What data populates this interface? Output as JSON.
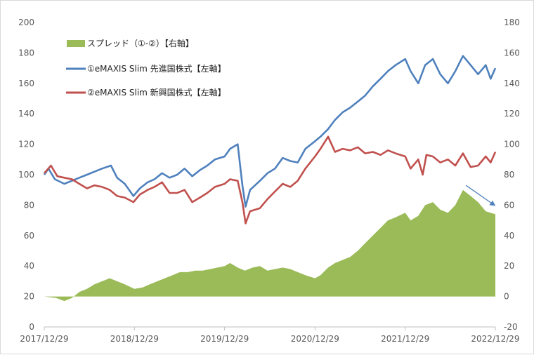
{
  "chart_data": {
    "type": "line",
    "title": "",
    "xlabel": "",
    "ylabel": "",
    "x_tick_labels": [
      "2017/12/29",
      "2018/12/29",
      "2019/12/29",
      "2020/12/29",
      "2021/12/29",
      "2022/12/29"
    ],
    "x_range": [
      "2017/12/29",
      "2022/12/29"
    ],
    "ylim_left": [
      0,
      200
    ],
    "yticks_left": [
      0,
      20,
      40,
      60,
      80,
      100,
      120,
      140,
      160,
      180,
      200
    ],
    "ylim_right": [
      -20,
      180
    ],
    "yticks_right": [
      -20,
      0,
      20,
      40,
      60,
      80,
      100,
      120,
      140,
      160,
      180
    ],
    "grid": false,
    "legend_position": "top-left",
    "series": [
      {
        "name": "スプレッド（①-②）【右軸】",
        "kind": "area",
        "axis": "right",
        "color": "#9BBB59",
        "points": [
          [
            "2017/12/29",
            0
          ],
          [
            "2018/02/15",
            -1
          ],
          [
            "2018/03/20",
            -3
          ],
          [
            "2018/04/20",
            -1
          ],
          [
            "2018/05/20",
            3
          ],
          [
            "2018/06/20",
            5
          ],
          [
            "2018/07/20",
            8
          ],
          [
            "2018/08/20",
            10
          ],
          [
            "2018/09/20",
            12
          ],
          [
            "2018/10/20",
            10
          ],
          [
            "2018/11/20",
            8
          ],
          [
            "2018/12/29",
            5
          ],
          [
            "2019/02/01",
            6
          ],
          [
            "2019/03/01",
            8
          ],
          [
            "2019/04/01",
            10
          ],
          [
            "2019/05/01",
            12
          ],
          [
            "2019/06/01",
            14
          ],
          [
            "2019/07/01",
            16
          ],
          [
            "2019/08/01",
            16
          ],
          [
            "2019/09/01",
            17
          ],
          [
            "2019/10/01",
            17
          ],
          [
            "2019/11/01",
            18
          ],
          [
            "2019/12/29",
            20
          ],
          [
            "2020/01/20",
            22
          ],
          [
            "2020/02/20",
            19
          ],
          [
            "2020/03/20",
            17
          ],
          [
            "2020/04/20",
            19
          ],
          [
            "2020/05/20",
            20
          ],
          [
            "2020/06/20",
            17
          ],
          [
            "2020/07/20",
            18
          ],
          [
            "2020/08/20",
            19
          ],
          [
            "2020/09/20",
            18
          ],
          [
            "2020/10/20",
            16
          ],
          [
            "2020/11/20",
            14
          ],
          [
            "2020/12/29",
            12
          ],
          [
            "2021/01/20",
            14
          ],
          [
            "2021/02/20",
            19
          ],
          [
            "2021/03/20",
            22
          ],
          [
            "2021/04/20",
            24
          ],
          [
            "2021/05/20",
            26
          ],
          [
            "2021/06/20",
            30
          ],
          [
            "2021/07/20",
            35
          ],
          [
            "2021/08/20",
            40
          ],
          [
            "2021/09/20",
            45
          ],
          [
            "2021/10/20",
            50
          ],
          [
            "2021/11/20",
            52
          ],
          [
            "2021/12/29",
            55
          ],
          [
            "2022/01/20",
            50
          ],
          [
            "2022/02/20",
            53
          ],
          [
            "2022/03/20",
            60
          ],
          [
            "2022/04/20",
            62
          ],
          [
            "2022/05/20",
            57
          ],
          [
            "2022/06/20",
            55
          ],
          [
            "2022/07/20",
            60
          ],
          [
            "2022/08/20",
            70
          ],
          [
            "2022/09/20",
            66
          ],
          [
            "2022/10/20",
            62
          ],
          [
            "2022/11/20",
            56
          ],
          [
            "2022/12/29",
            54
          ]
        ]
      },
      {
        "name": "①eMAXIS Slim 先進国株式【左軸】",
        "kind": "line",
        "axis": "left",
        "color": "#4F81BD",
        "points": [
          [
            "2017/12/29",
            100
          ],
          [
            "2018/01/15",
            104
          ],
          [
            "2018/02/10",
            97
          ],
          [
            "2018/03/20",
            94
          ],
          [
            "2018/04/20",
            96
          ],
          [
            "2018/05/20",
            98
          ],
          [
            "2018/06/20",
            100
          ],
          [
            "2018/07/20",
            102
          ],
          [
            "2018/08/20",
            104
          ],
          [
            "2018/09/25",
            106
          ],
          [
            "2018/10/20",
            98
          ],
          [
            "2018/11/20",
            94
          ],
          [
            "2018/12/25",
            86
          ],
          [
            "2019/01/20",
            91
          ],
          [
            "2019/02/20",
            95
          ],
          [
            "2019/03/20",
            97
          ],
          [
            "2019/04/20",
            101
          ],
          [
            "2019/05/20",
            98
          ],
          [
            "2019/06/20",
            100
          ],
          [
            "2019/07/20",
            104
          ],
          [
            "2019/08/20",
            99
          ],
          [
            "2019/09/20",
            103
          ],
          [
            "2019/10/20",
            106
          ],
          [
            "2019/11/20",
            110
          ],
          [
            "2019/12/29",
            112
          ],
          [
            "2020/01/20",
            117
          ],
          [
            "2020/02/20",
            120
          ],
          [
            "2020/03/10",
            93
          ],
          [
            "2020/03/23",
            79
          ],
          [
            "2020/04/10",
            90
          ],
          [
            "2020/05/20",
            96
          ],
          [
            "2020/06/20",
            101
          ],
          [
            "2020/07/20",
            104
          ],
          [
            "2020/08/20",
            111
          ],
          [
            "2020/09/20",
            109
          ],
          [
            "2020/10/20",
            108
          ],
          [
            "2020/11/20",
            117
          ],
          [
            "2020/12/29",
            122
          ],
          [
            "2021/01/20",
            125
          ],
          [
            "2021/02/20",
            130
          ],
          [
            "2021/03/20",
            136
          ],
          [
            "2021/04/20",
            141
          ],
          [
            "2021/05/20",
            144
          ],
          [
            "2021/06/20",
            148
          ],
          [
            "2021/07/20",
            152
          ],
          [
            "2021/08/20",
            158
          ],
          [
            "2021/09/20",
            163
          ],
          [
            "2021/10/20",
            168
          ],
          [
            "2021/11/20",
            172
          ],
          [
            "2021/12/29",
            176
          ],
          [
            "2022/01/20",
            168
          ],
          [
            "2022/02/20",
            160
          ],
          [
            "2022/03/20",
            172
          ],
          [
            "2022/04/20",
            176
          ],
          [
            "2022/05/20",
            166
          ],
          [
            "2022/06/20",
            160
          ],
          [
            "2022/07/20",
            168
          ],
          [
            "2022/08/20",
            178
          ],
          [
            "2022/09/20",
            172
          ],
          [
            "2022/10/20",
            166
          ],
          [
            "2022/11/20",
            172
          ],
          [
            "2022/12/10",
            163
          ],
          [
            "2022/12/29",
            170
          ]
        ]
      },
      {
        "name": "②eMAXIS Slim 新興国株式【左軸】",
        "kind": "line",
        "axis": "left",
        "color": "#C0504D",
        "points": [
          [
            "2017/12/29",
            101
          ],
          [
            "2018/01/25",
            106
          ],
          [
            "2018/02/20",
            99
          ],
          [
            "2018/03/20",
            98
          ],
          [
            "2018/04/20",
            97
          ],
          [
            "2018/05/20",
            94
          ],
          [
            "2018/06/20",
            91
          ],
          [
            "2018/07/20",
            93
          ],
          [
            "2018/08/20",
            92
          ],
          [
            "2018/09/20",
            90
          ],
          [
            "2018/10/20",
            86
          ],
          [
            "2018/11/20",
            85
          ],
          [
            "2018/12/25",
            82
          ],
          [
            "2019/01/20",
            87
          ],
          [
            "2019/02/20",
            90
          ],
          [
            "2019/03/20",
            92
          ],
          [
            "2019/04/20",
            95
          ],
          [
            "2019/05/20",
            88
          ],
          [
            "2019/06/20",
            88
          ],
          [
            "2019/07/20",
            90
          ],
          [
            "2019/08/20",
            82
          ],
          [
            "2019/09/20",
            85
          ],
          [
            "2019/10/20",
            88
          ],
          [
            "2019/11/20",
            92
          ],
          [
            "2019/12/29",
            94
          ],
          [
            "2020/01/20",
            97
          ],
          [
            "2020/02/20",
            96
          ],
          [
            "2020/03/10",
            82
          ],
          [
            "2020/03/23",
            68
          ],
          [
            "2020/04/10",
            76
          ],
          [
            "2020/05/20",
            78
          ],
          [
            "2020/06/20",
            84
          ],
          [
            "2020/07/20",
            89
          ],
          [
            "2020/08/20",
            94
          ],
          [
            "2020/09/20",
            92
          ],
          [
            "2020/10/20",
            96
          ],
          [
            "2020/11/20",
            104
          ],
          [
            "2020/12/29",
            112
          ],
          [
            "2021/01/20",
            117
          ],
          [
            "2021/02/20",
            125
          ],
          [
            "2021/03/20",
            115
          ],
          [
            "2021/04/20",
            117
          ],
          [
            "2021/05/20",
            116
          ],
          [
            "2021/06/20",
            118
          ],
          [
            "2021/07/20",
            114
          ],
          [
            "2021/08/20",
            115
          ],
          [
            "2021/09/20",
            113
          ],
          [
            "2021/10/20",
            116
          ],
          [
            "2021/11/20",
            114
          ],
          [
            "2021/12/29",
            112
          ],
          [
            "2022/01/20",
            104
          ],
          [
            "2022/02/20",
            110
          ],
          [
            "2022/03/10",
            100
          ],
          [
            "2022/03/25",
            113
          ],
          [
            "2022/04/20",
            112
          ],
          [
            "2022/05/20",
            108
          ],
          [
            "2022/06/20",
            110
          ],
          [
            "2022/07/20",
            106
          ],
          [
            "2022/08/20",
            114
          ],
          [
            "2022/09/20",
            105
          ],
          [
            "2022/10/20",
            106
          ],
          [
            "2022/11/20",
            112
          ],
          [
            "2022/12/10",
            108
          ],
          [
            "2022/12/29",
            115
          ]
        ]
      }
    ],
    "annotations": [
      {
        "type": "arrow",
        "color": "#4F81BD",
        "from": [
          "2022/09/01",
          93
        ],
        "to": [
          "2022/12/25",
          80
        ]
      }
    ]
  }
}
